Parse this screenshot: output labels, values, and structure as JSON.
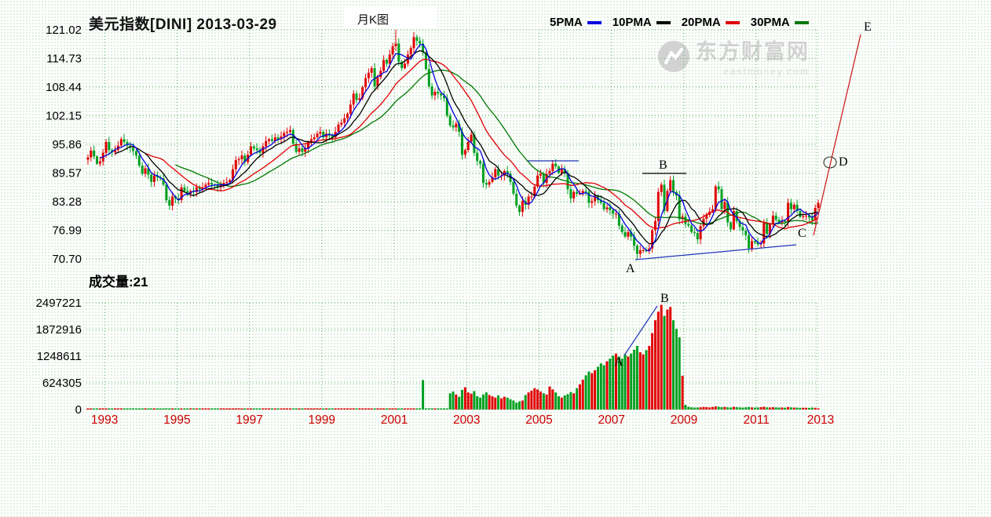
{
  "header": {
    "title": "美元指数[DINI] 2013-03-29",
    "chart_type_label": "月K图",
    "volume_label": "成交量:21"
  },
  "legend": [
    {
      "label": "5PMA",
      "color": "#0000dd"
    },
    {
      "label": "10PMA",
      "color": "#000000"
    },
    {
      "label": "20PMA",
      "color": "#e00000"
    },
    {
      "label": "30PMA",
      "color": "#007700"
    }
  ],
  "watermark": {
    "line1": "东方财富网",
    "line2": "eastmoney.com"
  },
  "colors": {
    "up": "#e00000",
    "down": "#00a020",
    "ma5": "#0000dd",
    "ma10": "#000000",
    "ma20": "#e00000",
    "ma30": "#007700",
    "grid": "#3aa03a",
    "axis_text": "#000000",
    "year_text": "#cc0000",
    "trend_blue": "#2233bb",
    "trend_red": "#cc1111",
    "trend_black": "#000000"
  },
  "chart_data": {
    "type": "candlestick+volume",
    "instrument": "美元指数",
    "code": "DINI",
    "date": "2013-03-29",
    "period": "月K图",
    "start": "1993-01",
    "end": "2013-03",
    "current_volume": 21,
    "price_axis": [
      121.02,
      114.73,
      108.44,
      102.15,
      95.86,
      89.57,
      83.28,
      76.99,
      70.7
    ],
    "volume_axis": [
      2497221,
      1872916,
      1248611,
      624305,
      0
    ],
    "x_ticks": [
      "1993",
      "1995",
      "1997",
      "1999",
      "2001",
      "2003",
      "2005",
      "2007",
      "2009",
      "2011",
      "2013"
    ],
    "ma_periods": [
      5,
      10,
      20,
      30
    ],
    "first_open": 92.5,
    "hl_overrides": [
      {
        "i": 102,
        "h": 121.02
      },
      {
        "i": 182,
        "l": 70.7
      }
    ],
    "closes": [
      93.0,
      94.5,
      93.2,
      91.6,
      92.1,
      94.0,
      96.4,
      94.6,
      94.1,
      94.6,
      95.6,
      97.0,
      96.4,
      95.6,
      95.1,
      94.4,
      93.4,
      91.2,
      89.4,
      90.6,
      89.2,
      87.6,
      89.0,
      88.6,
      88.4,
      87.0,
      83.6,
      82.4,
      84.4,
      84.0,
      83.6,
      86.4,
      85.6,
      85.0,
      85.6,
      85.4,
      86.4,
      86.0,
      86.4,
      87.0,
      87.4,
      87.0,
      86.9,
      86.5,
      87.0,
      87.4,
      87.6,
      88.0,
      90.4,
      92.4,
      92.6,
      93.4,
      92.0,
      93.6,
      95.4,
      95.0,
      94.6,
      94.0,
      95.4,
      96.6,
      97.0,
      96.6,
      97.4,
      97.0,
      97.6,
      98.4,
      98.6,
      99.0,
      96.0,
      94.2,
      95.0,
      94.2,
      95.0,
      96.4,
      97.0,
      97.4,
      98.2,
      98.6,
      97.4,
      98.2,
      97.8,
      97.4,
      98.6,
      100.2,
      100.6,
      101.6,
      102.6,
      104.6,
      107.0,
      105.6,
      106.0,
      108.4,
      110.4,
      111.6,
      112.6,
      108.6,
      110.6,
      112.0,
      114.4,
      113.6,
      115.6,
      117.4,
      118.0,
      114.0,
      112.6,
      113.6,
      115.6,
      117.0,
      119.4,
      118.6,
      118.0,
      116.0,
      112.4,
      108.6,
      106.6,
      107.4,
      107.0,
      106.6,
      106.0,
      102.2,
      100.0,
      99.6,
      100.4,
      98.6,
      93.6,
      94.6,
      96.4,
      98.0,
      94.0,
      92.2,
      91.6,
      87.4,
      87.0,
      87.6,
      88.6,
      90.4,
      89.0,
      89.0,
      90.0,
      89.4,
      87.6,
      85.0,
      82.4,
      81.0,
      83.4,
      82.6,
      84.4,
      84.4,
      86.6,
      89.0,
      89.4,
      87.4,
      89.4,
      90.0,
      91.6,
      91.0,
      89.6,
      90.4,
      89.6,
      86.0,
      84.0,
      85.4,
      85.0,
      85.0,
      85.6,
      85.4,
      83.0,
      83.4,
      84.6,
      83.6,
      83.0,
      81.6,
      82.0,
      81.4,
      80.6,
      80.6,
      78.0,
      76.6,
      75.6,
      76.6,
      75.6,
      73.6,
      71.8,
      72.6,
      72.6,
      72.4,
      73.0,
      77.0,
      79.0,
      85.4,
      87.0,
      81.2,
      85.6,
      88.0,
      85.4,
      84.6,
      79.4,
      80.0,
      78.4,
      78.0,
      76.6,
      76.4,
      75.0,
      77.9,
      79.5,
      80.4,
      81.1,
      81.6,
      86.6,
      86.0,
      81.6,
      83.2,
      78.7,
      77.2,
      81.2,
      79.0,
      77.7,
      76.9,
      75.9,
      73.0,
      74.6,
      74.3,
      73.9,
      74.1,
      78.6,
      76.2,
      78.4,
      80.2,
      79.3,
      78.7,
      79.0,
      78.8,
      83.0,
      81.6,
      82.6,
      81.2,
      79.9,
      80.1,
      80.2,
      79.8,
      79.2,
      81.9,
      83.0
    ],
    "volumes": [
      1200,
      900,
      1500,
      800,
      1100,
      1300,
      1000,
      900,
      1200,
      1100,
      1000,
      1400,
      1100,
      1300,
      900,
      1200,
      1500,
      1100,
      1800,
      1200,
      1400,
      1600,
      1200,
      1000,
      1500,
      1800,
      2200,
      1900,
      1400,
      1200,
      1300,
      1500,
      1100,
      1000,
      900,
      1100,
      1000,
      900,
      1100,
      1000,
      1200,
      900,
      800,
      1000,
      900,
      1100,
      1000,
      1200,
      1400,
      1600,
      1300,
      1500,
      1200,
      1400,
      1700,
      1500,
      1300,
      1600,
      1400,
      1500,
      1600,
      1400,
      1500,
      1300,
      1400,
      1600,
      1500,
      1700,
      2000,
      2200,
      1800,
      1600,
      1500,
      1400,
      1600,
      1500,
      1700,
      1600,
      1800,
      1500,
      1400,
      1600,
      1500,
      1700,
      2000,
      2200,
      2400,
      2600,
      3000,
      2500,
      2300,
      2800,
      3200,
      3500,
      3800,
      3000,
      3200,
      3500,
      4000,
      3600,
      4200,
      4800,
      5000,
      4200,
      3800,
      4000,
      4400,
      4800,
      5200,
      5600,
      6000,
      690000,
      8000,
      7000,
      6500,
      6000,
      6500,
      7000,
      6800,
      9000,
      380000,
      420000,
      350000,
      300000,
      460000,
      520000,
      400000,
      370000,
      430000,
      310000,
      280000,
      350000,
      400000,
      340000,
      310000,
      280000,
      330000,
      260000,
      300000,
      280000,
      240000,
      210000,
      160000,
      190000,
      210000,
      340000,
      400000,
      440000,
      500000,
      470000,
      420000,
      380000,
      350000,
      540000,
      470000,
      400000,
      310000,
      280000,
      330000,
      360000,
      410000,
      380000,
      500000,
      590000,
      700000,
      800000,
      890000,
      850000,
      920000,
      1000000,
      1080000,
      1040000,
      1130000,
      1190000,
      1260000,
      1310000,
      1240000,
      1190000,
      1290000,
      1240000,
      1310000,
      1400000,
      1490000,
      1340000,
      1290000,
      1390000,
      1490000,
      1790000,
      2090000,
      2290000,
      2450000,
      2190000,
      2340000,
      2400000,
      2090000,
      1890000,
      1690000,
      790000,
      110000,
      65000,
      52000,
      45000,
      48000,
      52000,
      60000,
      55000,
      50000,
      58000,
      72000,
      65000,
      55000,
      60000,
      52000,
      48000,
      62000,
      55000,
      50000,
      46000,
      52000,
      58000,
      50000,
      45000,
      48000,
      56000,
      64000,
      52000,
      48000,
      54000,
      50000,
      45000,
      48000,
      42000,
      58000,
      50000,
      46000,
      44000,
      40000,
      42000,
      40000,
      38000,
      45000,
      40000,
      21
    ],
    "annotations": {
      "price_letters": [
        {
          "label": "A",
          "x": 797,
          "y": 347
        },
        {
          "label": "B",
          "x": 839,
          "y": 215
        },
        {
          "label": "C",
          "x": 1016,
          "y": 302
        },
        {
          "label": "D",
          "x": 1068,
          "y": 211
        },
        {
          "label": "E",
          "x": 1100,
          "y": 39
        }
      ],
      "price_lines": [
        {
          "x1": 809,
          "y1": 331,
          "x2": 1014,
          "y2": 312,
          "color": "blue"
        },
        {
          "x1": 672,
          "y1": 205,
          "x2": 737,
          "y2": 205,
          "color": "blue"
        },
        {
          "x1": 818,
          "y1": 221,
          "x2": 874,
          "y2": 221,
          "color": "black"
        },
        {
          "x1": 1036,
          "y1": 300,
          "x2": 1096,
          "y2": 44,
          "color": "red"
        }
      ],
      "price_circle": {
        "cx": 1057,
        "cy": 207,
        "rx": 8,
        "ry": 7
      },
      "volume_letters": [
        {
          "label": "A",
          "x": 782,
          "y": 466
        },
        {
          "label": "B",
          "x": 841,
          "y": 385
        }
      ],
      "volume_lines": [
        {
          "x1": 795,
          "y1": 453,
          "x2": 837,
          "y2": 390,
          "color": "blue"
        }
      ]
    }
  }
}
